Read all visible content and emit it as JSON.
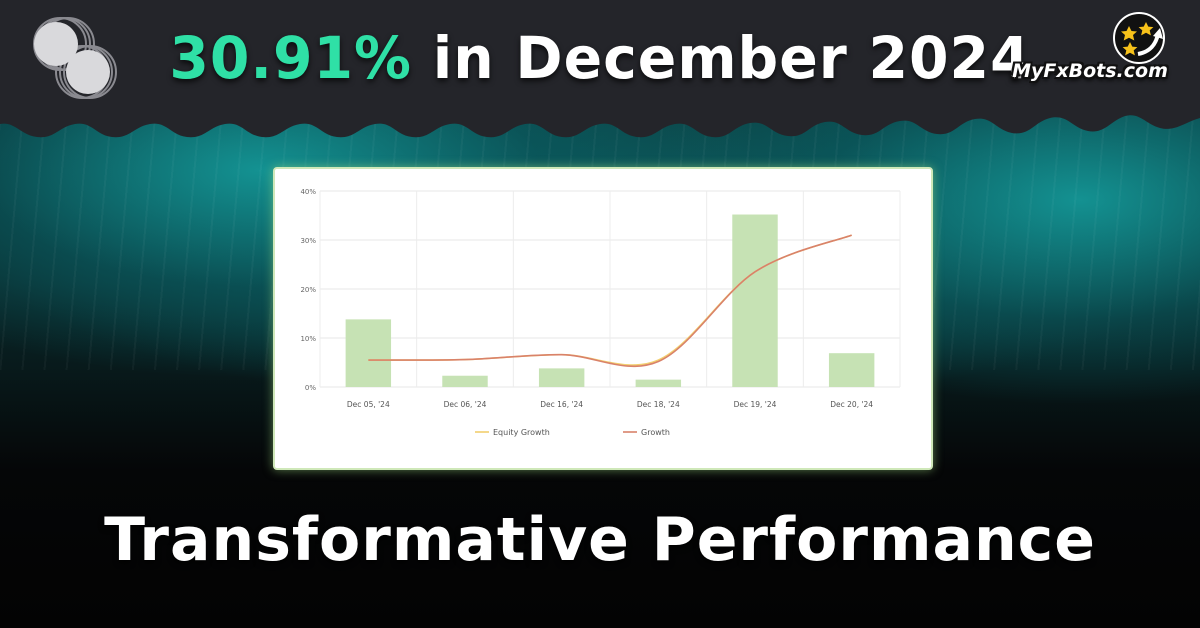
{
  "header": {
    "title_highlight": "30.91%",
    "title_rest": " in December 2024",
    "brand": "MyFxBots.com"
  },
  "footer": {
    "subtitle": "Transformative Performance"
  },
  "colors": {
    "highlight": "#2fe0a6",
    "bar": "#c6e2b4",
    "growth": "#d9826a",
    "equity_growth": "#f2cf6e"
  },
  "icons": {
    "logo": "overlapping-circles-logo",
    "brand": "stars-arrow-icon"
  },
  "chart_data": {
    "type": "bar",
    "categories": [
      "Dec 05, '24",
      "Dec 06, '24",
      "Dec 16, '24",
      "Dec 18, '24",
      "Dec 19, '24",
      "Dec 20, '24"
    ],
    "series": [
      {
        "type": "bar",
        "values": [
          13.8,
          2.3,
          3.8,
          1.5,
          35.2,
          6.9
        ]
      },
      {
        "name": "Equity Growth",
        "type": "line",
        "values": [
          5.5,
          5.6,
          6.6,
          5.5,
          23.5,
          31.0
        ]
      },
      {
        "name": "Growth",
        "type": "line",
        "values": [
          5.5,
          5.6,
          6.6,
          5.2,
          23.5,
          31.0
        ]
      }
    ],
    "y_ticks": [
      "0%",
      "10%",
      "20%",
      "30%",
      "40%"
    ],
    "ylim": [
      0,
      40
    ],
    "grid": true,
    "legend": "bottom"
  }
}
